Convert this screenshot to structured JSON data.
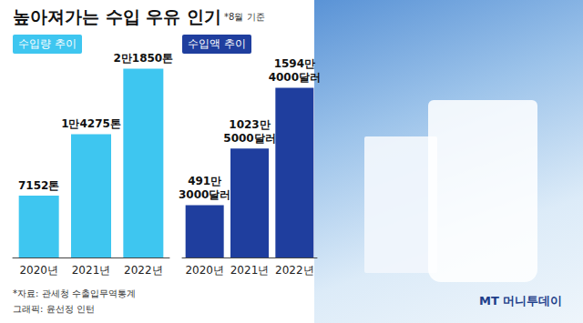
{
  "title": "높아져가는 수입 우유 인기",
  "note": "*8월 기준",
  "source": "*자료: 관세청 수출입무역통계",
  "credit": "그래픽: 윤선정 인턴",
  "logo": "MT 머니투데이",
  "chart_data": [
    {
      "type": "bar",
      "title": "수입량 추이",
      "categories": [
        "2020년",
        "2021년",
        "2022년"
      ],
      "values": [
        7152,
        14275,
        21850
      ],
      "value_labels": [
        "7152톤",
        "1만4275톤",
        "2만1850톤"
      ],
      "color": "#3ec6f0",
      "ylim": [
        0,
        24000
      ],
      "data_labels": true,
      "tick_labels": "x",
      "grid": false
    },
    {
      "type": "bar",
      "title": "수입액 추이",
      "categories": [
        "2020년",
        "2021년",
        "2022년"
      ],
      "values": [
        4913000,
        10235000,
        15944000
      ],
      "value_labels": [
        "491만 3000달러",
        "1023만 5000달러",
        "1594만 4000달러"
      ],
      "color": "#1f3e9e",
      "ylim": [
        0,
        19500000
      ],
      "data_labels": true,
      "tick_labels": "x",
      "grid": false
    }
  ]
}
